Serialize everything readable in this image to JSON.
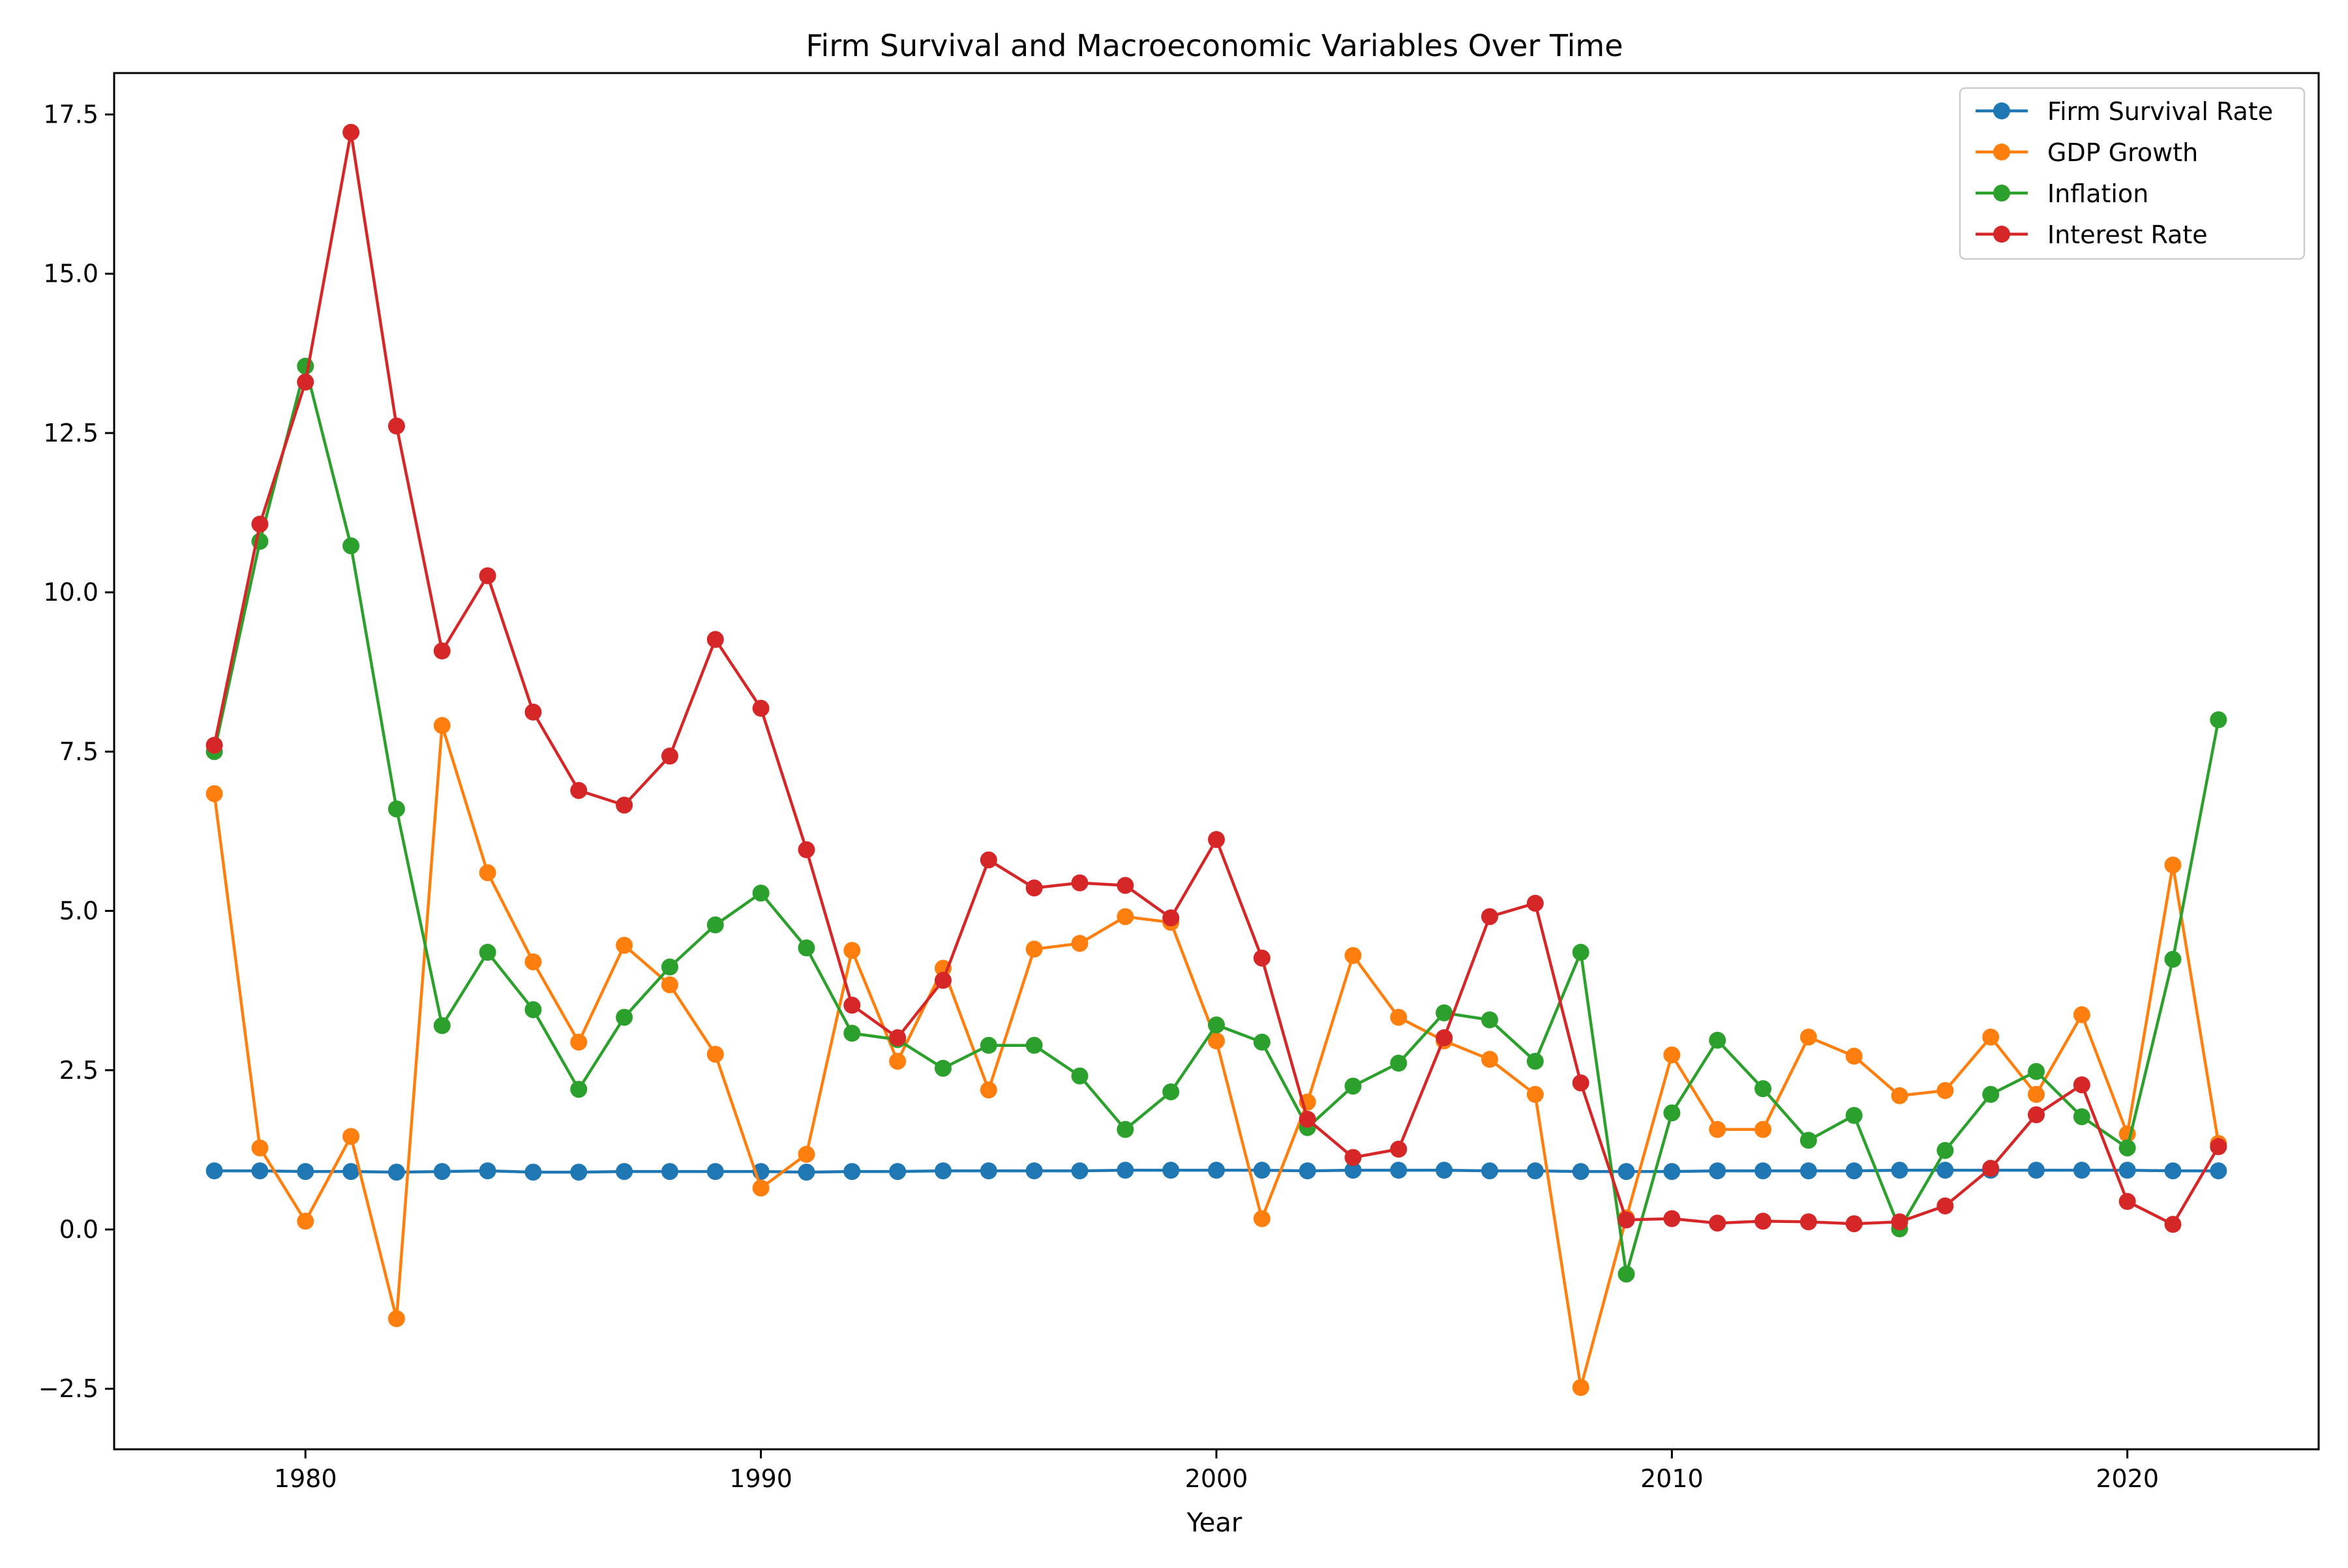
{
  "chart_data": {
    "type": "line",
    "title": "Firm Survival and Macroeconomic Variables Over Time",
    "xlabel": "Year",
    "ylabel": "",
    "xlim": [
      1975.8,
      2024.2
    ],
    "ylim": [
      -3.45,
      18.15
    ],
    "xticks": [
      1980,
      1990,
      2000,
      2010,
      2020
    ],
    "yticks": [
      -2.5,
      0.0,
      2.5,
      5.0,
      7.5,
      10.0,
      12.5,
      15.0,
      17.5
    ],
    "grid": false,
    "legend_position": "top-right",
    "x": [
      1978,
      1979,
      1980,
      1981,
      1982,
      1983,
      1984,
      1985,
      1986,
      1987,
      1988,
      1989,
      1990,
      1991,
      1992,
      1993,
      1994,
      1995,
      1996,
      1997,
      1998,
      1999,
      2000,
      2001,
      2002,
      2003,
      2004,
      2005,
      2006,
      2007,
      2008,
      2009,
      2010,
      2011,
      2012,
      2013,
      2014,
      2015,
      2016,
      2017,
      2018,
      2019,
      2020,
      2021,
      2022
    ],
    "series": [
      {
        "name": "Firm Survival Rate",
        "color": "#1f77b4",
        "values": [
          0.92,
          0.92,
          0.91,
          0.91,
          0.9,
          0.91,
          0.92,
          0.9,
          0.9,
          0.91,
          0.91,
          0.91,
          0.91,
          0.9,
          0.91,
          0.91,
          0.92,
          0.92,
          0.92,
          0.92,
          0.93,
          0.93,
          0.93,
          0.93,
          0.92,
          0.93,
          0.93,
          0.93,
          0.92,
          0.92,
          0.91,
          0.91,
          0.91,
          0.92,
          0.92,
          0.92,
          0.92,
          0.93,
          0.93,
          0.93,
          0.93,
          0.93,
          0.93,
          0.92,
          0.92
        ]
      },
      {
        "name": "GDP Growth",
        "color": "#ff7f0e",
        "values": [
          6.84,
          1.28,
          0.13,
          1.46,
          -1.4,
          7.91,
          5.6,
          4.2,
          2.94,
          4.46,
          3.84,
          2.75,
          0.65,
          1.18,
          4.38,
          2.64,
          4.1,
          2.19,
          4.4,
          4.49,
          4.91,
          4.82,
          2.96,
          0.17,
          2.0,
          4.3,
          3.33,
          2.96,
          2.67,
          2.12,
          -2.48,
          0.18,
          2.74,
          1.57,
          1.57,
          3.02,
          2.72,
          2.1,
          2.18,
          3.02,
          2.12,
          3.37,
          1.5,
          5.72,
          1.35
        ]
      },
      {
        "name": "Inflation",
        "color": "#2ca02c",
        "values": [
          7.5,
          10.8,
          13.55,
          10.73,
          6.6,
          3.2,
          4.35,
          3.45,
          2.2,
          3.33,
          4.12,
          4.78,
          5.28,
          4.42,
          3.08,
          2.98,
          2.53,
          2.89,
          2.89,
          2.41,
          1.57,
          2.16,
          3.21,
          2.94,
          1.6,
          2.25,
          2.61,
          3.4,
          3.29,
          2.64,
          4.35,
          -0.7,
          1.83,
          2.97,
          2.21,
          1.4,
          1.79,
          0.01,
          1.24,
          2.12,
          2.48,
          1.77,
          1.28,
          4.24,
          8.0
        ]
      },
      {
        "name": "Interest Rate",
        "color": "#d62728",
        "values": [
          7.6,
          11.07,
          13.3,
          17.22,
          12.61,
          9.08,
          10.26,
          8.12,
          6.89,
          6.66,
          7.43,
          9.26,
          8.18,
          5.96,
          3.52,
          3.01,
          3.91,
          5.8,
          5.36,
          5.44,
          5.4,
          4.89,
          6.12,
          4.26,
          1.73,
          1.13,
          1.26,
          3.01,
          4.91,
          5.12,
          2.3,
          0.15,
          0.17,
          0.1,
          0.13,
          0.12,
          0.09,
          0.12,
          0.37,
          0.96,
          1.8,
          2.27,
          0.44,
          0.08,
          1.3
        ]
      }
    ]
  }
}
